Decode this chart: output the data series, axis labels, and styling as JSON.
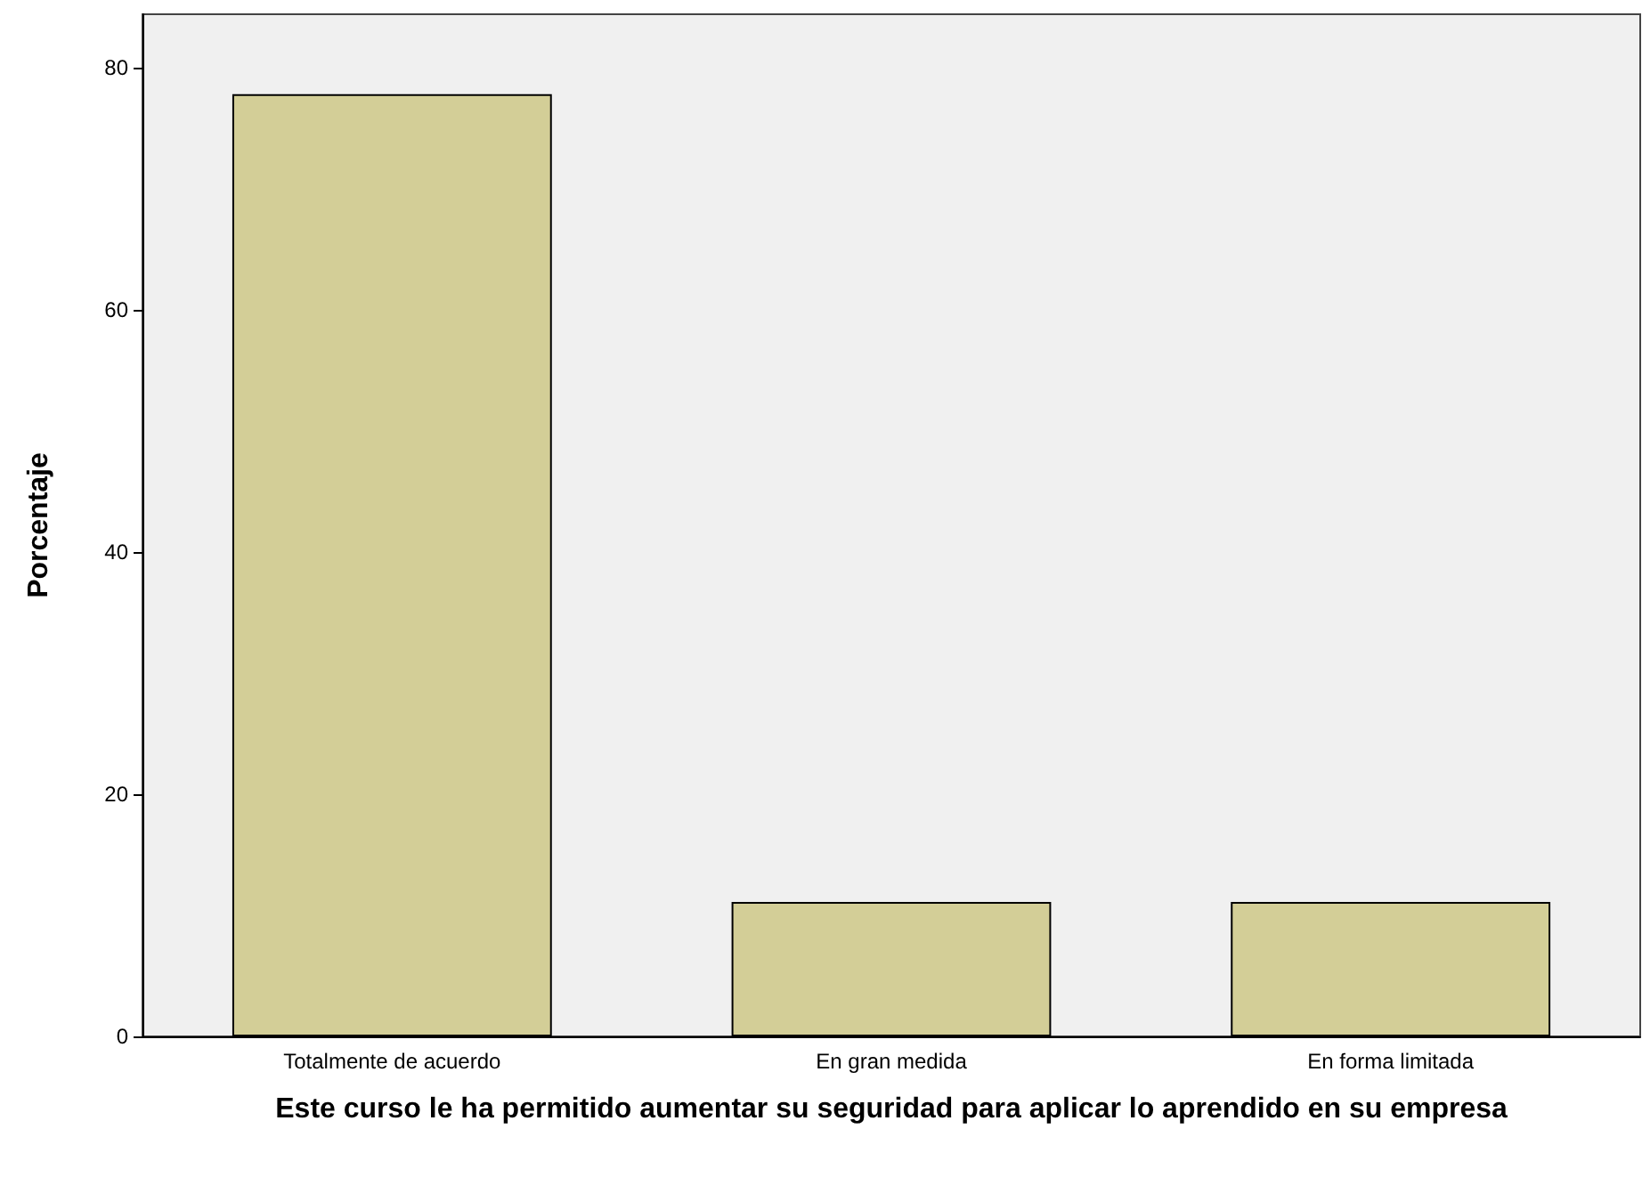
{
  "chart_data": {
    "type": "bar",
    "xlabel": "Este curso le ha permitido aumentar su seguridad para aplicar lo aprendido en su empresa",
    "ylabel": "Porcentaje",
    "categories": [
      "Totalmente de acuerdo",
      "En gran medida",
      "En forma limitada"
    ],
    "values": [
      77.8,
      11.1,
      11.1
    ],
    "color": "#d3ce97",
    "ylim": [
      0,
      84.4
    ],
    "yticks": [
      0,
      20,
      40,
      60,
      80
    ],
    "grid": false
  }
}
